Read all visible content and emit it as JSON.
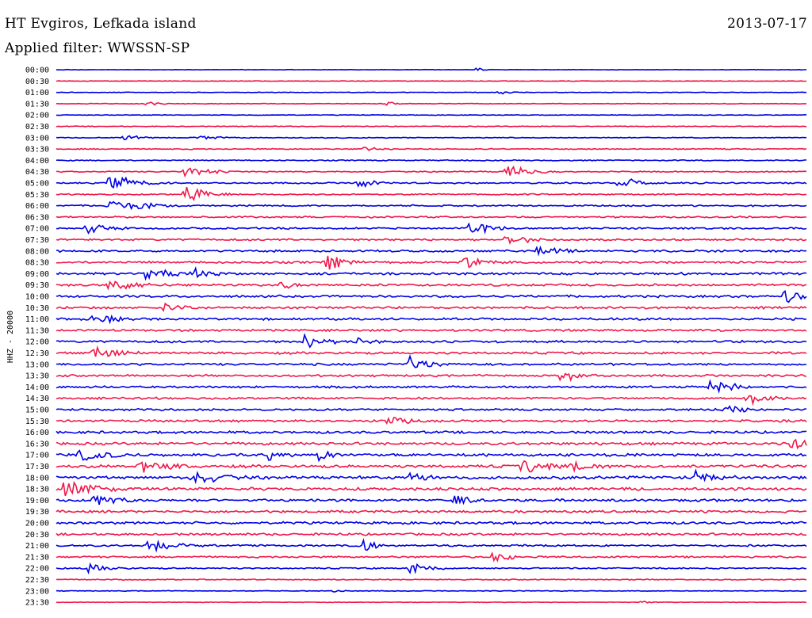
{
  "header": {
    "station": "HT Evgiros, Lefkada island",
    "filter": "Applied filter: WWSSN-SP",
    "date": "2013-07-17"
  },
  "chart_data": {
    "type": "helicorder",
    "title": "HT Evgiros, Lefkada island",
    "subtitle": "Applied filter: WWSSN-SP",
    "date": "2013-07-17",
    "ylabel": "HHZ - 20000",
    "trace_colors": [
      "#0000e6",
      "#f0194b"
    ],
    "row_labels": [
      "00:00",
      "00:30",
      "01:00",
      "01:30",
      "02:00",
      "02:30",
      "03:00",
      "03:30",
      "04:00",
      "04:30",
      "05:00",
      "05:30",
      "06:00",
      "06:30",
      "07:00",
      "07:30",
      "08:00",
      "08:30",
      "09:00",
      "09:30",
      "10:00",
      "10:30",
      "11:00",
      "11:30",
      "12:00",
      "12:30",
      "13:00",
      "13:30",
      "14:00",
      "14:30",
      "15:00",
      "15:30",
      "16:00",
      "16:30",
      "17:00",
      "17:30",
      "18:00",
      "18:30",
      "19:00",
      "19:30",
      "20:00",
      "20:30",
      "21:00",
      "21:30",
      "22:00",
      "22:30",
      "23:00",
      "23:30"
    ],
    "noise_level": [
      0.25,
      0.3,
      0.3,
      0.35,
      0.35,
      0.4,
      0.5,
      0.6,
      0.6,
      0.7,
      0.8,
      0.8,
      0.9,
      0.9,
      1.0,
      1.1,
      1.2,
      1.2,
      1.3,
      1.3,
      1.3,
      1.3,
      1.3,
      1.2,
      1.3,
      1.3,
      1.3,
      1.2,
      1.2,
      1.2,
      1.2,
      1.3,
      1.4,
      1.5,
      1.6,
      1.6,
      1.7,
      1.6,
      1.5,
      1.4,
      1.4,
      1.3,
      1.1,
      1.0,
      0.8,
      0.6,
      0.4,
      0.3
    ],
    "events": [
      {
        "row": 0,
        "t": 0.56,
        "amp": 4,
        "dur": 0.01
      },
      {
        "row": 2,
        "t": 0.59,
        "amp": 3,
        "dur": 0.02
      },
      {
        "row": 3,
        "t": 0.12,
        "amp": 3,
        "dur": 0.02
      },
      {
        "row": 3,
        "t": 0.44,
        "amp": 3,
        "dur": 0.02
      },
      {
        "row": 6,
        "t": 0.09,
        "amp": 4,
        "dur": 0.03
      },
      {
        "row": 6,
        "t": 0.19,
        "amp": 4,
        "dur": 0.03
      },
      {
        "row": 7,
        "t": 0.41,
        "amp": 4,
        "dur": 0.02
      },
      {
        "row": 9,
        "t": 0.17,
        "amp": 10,
        "dur": 0.03
      },
      {
        "row": 9,
        "t": 0.6,
        "amp": 12,
        "dur": 0.03
      },
      {
        "row": 10,
        "t": 0.07,
        "amp": 12,
        "dur": 0.04
      },
      {
        "row": 10,
        "t": 0.4,
        "amp": 10,
        "dur": 0.02
      },
      {
        "row": 10,
        "t": 0.75,
        "amp": 10,
        "dur": 0.03
      },
      {
        "row": 11,
        "t": 0.17,
        "amp": 14,
        "dur": 0.03
      },
      {
        "row": 12,
        "t": 0.07,
        "amp": 14,
        "dur": 0.04
      },
      {
        "row": 14,
        "t": 0.55,
        "amp": 12,
        "dur": 0.03
      },
      {
        "row": 14,
        "t": 0.04,
        "amp": 10,
        "dur": 0.03
      },
      {
        "row": 15,
        "t": 0.6,
        "amp": 10,
        "dur": 0.03
      },
      {
        "row": 16,
        "t": 0.64,
        "amp": 12,
        "dur": 0.03
      },
      {
        "row": 17,
        "t": 0.36,
        "amp": 12,
        "dur": 0.03
      },
      {
        "row": 17,
        "t": 0.54,
        "amp": 12,
        "dur": 0.03
      },
      {
        "row": 18,
        "t": 0.12,
        "amp": 10,
        "dur": 0.04
      },
      {
        "row": 18,
        "t": 0.18,
        "amp": 10,
        "dur": 0.03
      },
      {
        "row": 19,
        "t": 0.07,
        "amp": 10,
        "dur": 0.05
      },
      {
        "row": 19,
        "t": 0.3,
        "amp": 8,
        "dur": 0.02
      },
      {
        "row": 20,
        "t": 0.97,
        "amp": 12,
        "dur": 0.03
      },
      {
        "row": 21,
        "t": 0.14,
        "amp": 10,
        "dur": 0.03
      },
      {
        "row": 22,
        "t": 0.05,
        "amp": 10,
        "dur": 0.03
      },
      {
        "row": 24,
        "t": 0.33,
        "amp": 12,
        "dur": 0.03
      },
      {
        "row": 24,
        "t": 0.4,
        "amp": 8,
        "dur": 0.03
      },
      {
        "row": 25,
        "t": 0.05,
        "amp": 10,
        "dur": 0.04
      },
      {
        "row": 26,
        "t": 0.47,
        "amp": 12,
        "dur": 0.03
      },
      {
        "row": 27,
        "t": 0.67,
        "amp": 10,
        "dur": 0.03
      },
      {
        "row": 28,
        "t": 0.87,
        "amp": 10,
        "dur": 0.04
      },
      {
        "row": 29,
        "t": 0.92,
        "amp": 10,
        "dur": 0.03
      },
      {
        "row": 30,
        "t": 0.89,
        "amp": 8,
        "dur": 0.03
      },
      {
        "row": 31,
        "t": 0.44,
        "amp": 10,
        "dur": 0.03
      },
      {
        "row": 33,
        "t": 0.98,
        "amp": 10,
        "dur": 0.03
      },
      {
        "row": 34,
        "t": 0.03,
        "amp": 10,
        "dur": 0.05
      },
      {
        "row": 34,
        "t": 0.28,
        "amp": 8,
        "dur": 0.03
      },
      {
        "row": 34,
        "t": 0.35,
        "amp": 8,
        "dur": 0.03
      },
      {
        "row": 35,
        "t": 0.11,
        "amp": 12,
        "dur": 0.04
      },
      {
        "row": 35,
        "t": 0.62,
        "amp": 10,
        "dur": 0.05
      },
      {
        "row": 35,
        "t": 0.68,
        "amp": 10,
        "dur": 0.04
      },
      {
        "row": 36,
        "t": 0.18,
        "amp": 10,
        "dur": 0.06
      },
      {
        "row": 36,
        "t": 0.47,
        "amp": 10,
        "dur": 0.03
      },
      {
        "row": 36,
        "t": 0.85,
        "amp": 10,
        "dur": 0.04
      },
      {
        "row": 37,
        "t": 0.01,
        "amp": 14,
        "dur": 0.05
      },
      {
        "row": 38,
        "t": 0.05,
        "amp": 10,
        "dur": 0.04
      },
      {
        "row": 38,
        "t": 0.53,
        "amp": 8,
        "dur": 0.03
      },
      {
        "row": 42,
        "t": 0.12,
        "amp": 10,
        "dur": 0.04
      },
      {
        "row": 42,
        "t": 0.41,
        "amp": 10,
        "dur": 0.02
      },
      {
        "row": 43,
        "t": 0.58,
        "amp": 8,
        "dur": 0.03
      },
      {
        "row": 44,
        "t": 0.04,
        "amp": 8,
        "dur": 0.03
      },
      {
        "row": 44,
        "t": 0.47,
        "amp": 8,
        "dur": 0.03
      },
      {
        "row": 46,
        "t": 0.37,
        "amp": 4,
        "dur": 0.01
      },
      {
        "row": 47,
        "t": 0.78,
        "amp": 3,
        "dur": 0.01
      }
    ]
  }
}
